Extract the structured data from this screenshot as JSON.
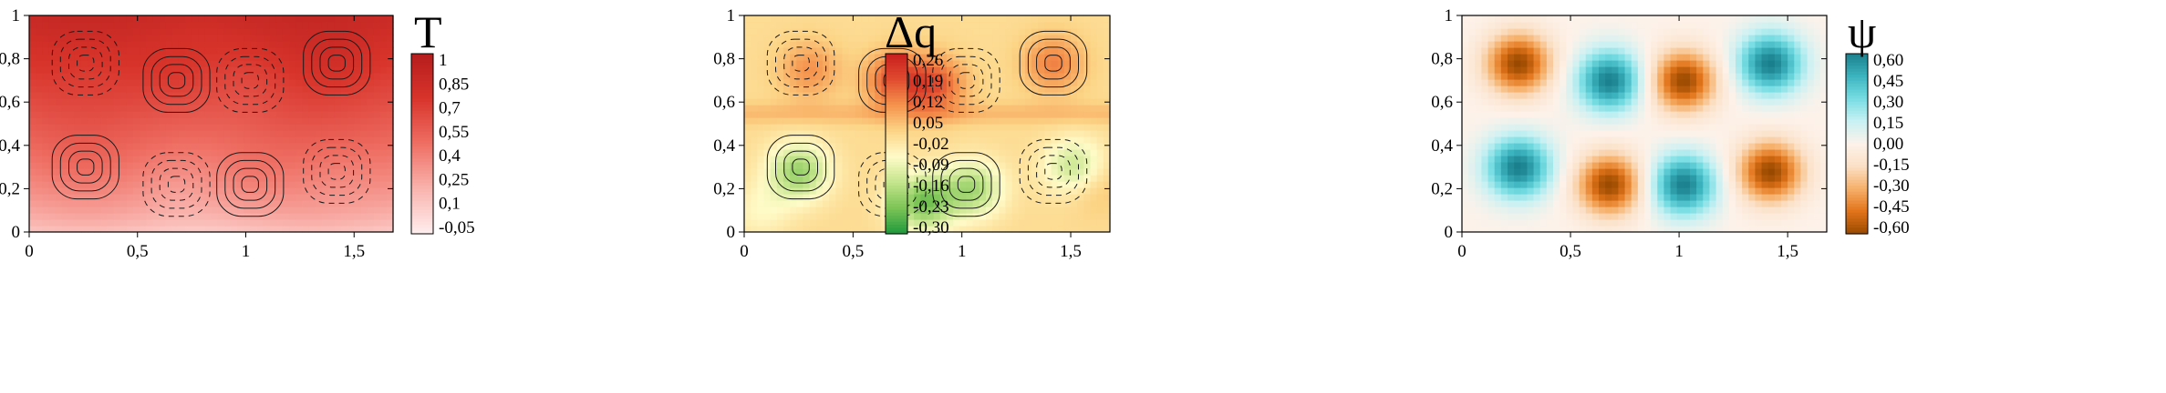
{
  "chart_data": [
    {
      "type": "heatmap",
      "title": "",
      "xlabel": "",
      "ylabel": "",
      "xlim": [
        0,
        1.68
      ],
      "ylim": [
        0,
        1
      ],
      "x_ticks": [
        "0",
        "0,5",
        "1",
        "1,5"
      ],
      "x_tick_values": [
        0,
        0.5,
        1,
        1.5
      ],
      "y_ticks": [
        "0",
        "0,2",
        "0,4",
        "0,6",
        "0,8",
        "1"
      ],
      "y_tick_values": [
        0,
        0.2,
        0.4,
        0.6,
        0.8,
        1
      ],
      "colorbar": {
        "label": "T",
        "ticks": [
          "1",
          "0,85",
          "0,7",
          "0,55",
          "0,4",
          "0,25",
          "0,1",
          "-0,05"
        ],
        "tick_values": [
          1,
          0.85,
          0.7,
          0.55,
          0.4,
          0.25,
          0.1,
          -0.05
        ],
        "range": [
          -0.05,
          1.05
        ],
        "colors": [
          "#ffeeee",
          "#f9b3ad",
          "#ef6f64",
          "#d8342b",
          "#b51d1d"
        ]
      },
      "field": "temperature",
      "contours": "stream-function (solid = positive, dashed = negative)"
    },
    {
      "type": "heatmap",
      "title": "",
      "xlabel": "",
      "ylabel": "",
      "xlim": [
        0,
        1.68
      ],
      "ylim": [
        0,
        1
      ],
      "x_ticks": [
        "0",
        "0,5",
        "1",
        "1,5"
      ],
      "x_tick_values": [
        0,
        0.5,
        1,
        1.5
      ],
      "y_ticks": [
        "0",
        "0,2",
        "0,4",
        "0,6",
        "0,8",
        "1"
      ],
      "y_tick_values": [
        0,
        0.2,
        0.4,
        0.6,
        0.8,
        1
      ],
      "colorbar": {
        "label": "Δq",
        "ticks": [
          "0,26",
          "0,19",
          "0,12",
          "0,05",
          "-0,02",
          "-0,09",
          "-0,16",
          "-0,23",
          "-0,30"
        ],
        "tick_values": [
          0.26,
          0.19,
          0.12,
          0.05,
          -0.02,
          -0.09,
          -0.16,
          -0.23,
          -0.3
        ],
        "range": [
          -0.3,
          0.29
        ],
        "colors": [
          "#1f9a3c",
          "#7cc455",
          "#c4e58c",
          "#fffbc8",
          "#fcd486",
          "#f5924c",
          "#e04b2f",
          "#c81e1e"
        ]
      },
      "field": "dq",
      "contours": "stream-function (solid = positive, dashed = negative)"
    },
    {
      "type": "heatmap",
      "title": "",
      "xlabel": "",
      "ylabel": "",
      "xlim": [
        0,
        1.68
      ],
      "ylim": [
        0,
        1
      ],
      "x_ticks": [
        "0",
        "0,5",
        "1",
        "1,5"
      ],
      "x_tick_values": [
        0,
        0.5,
        1,
        1.5
      ],
      "y_ticks": [
        "0",
        "0,2",
        "0,4",
        "0,6",
        "0,8",
        "1"
      ],
      "y_tick_values": [
        0,
        0.2,
        0.4,
        0.6,
        0.8,
        1
      ],
      "colorbar": {
        "label": "ψ",
        "ticks": [
          "0,60",
          "0,45",
          "0,30",
          "0,15",
          "0,00",
          "-0,15",
          "-0,30",
          "-0,45",
          "-0,60"
        ],
        "tick_values": [
          0.6,
          0.45,
          0.3,
          0.15,
          0.0,
          -0.15,
          -0.3,
          -0.45,
          -0.6
        ],
        "range": [
          -0.62,
          0.62
        ],
        "colors": [
          "#9a4a00",
          "#e2741a",
          "#f6b06a",
          "#fbe0c6",
          "#fdf2ea",
          "#c8f1f3",
          "#77dde3",
          "#3cb4bf",
          "#1a7f8c"
        ]
      },
      "field": "psi",
      "contours": "none"
    }
  ]
}
